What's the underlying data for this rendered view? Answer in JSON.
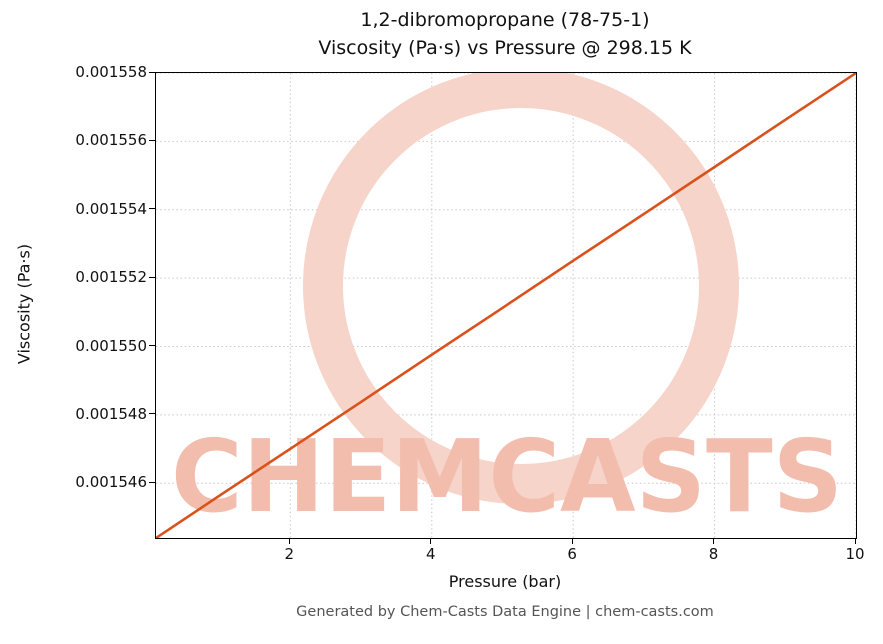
{
  "titles": {
    "line1": "1,2-dibromopropane (78-75-1)",
    "line2": "Viscosity (Pa·s) vs Pressure @ 298.15 K"
  },
  "footer": "Generated by Chem-Casts Data Engine | chem-casts.com",
  "watermark": {
    "text": "CHEMCASTS",
    "ring_color": "#f6d4ca",
    "text_color": "#f3bdae"
  },
  "chart_data": {
    "type": "line",
    "title": "1,2-dibromopropane (78-75-1) Viscosity (Pa·s) vs Pressure @ 298.15 K",
    "xlabel": "Pressure (bar)",
    "ylabel": "Viscosity (Pa·s)",
    "xlim": [
      0.1,
      10
    ],
    "ylim": [
      0.0015444,
      0.001558
    ],
    "x_ticks": [
      2,
      4,
      6,
      8,
      10
    ],
    "y_ticks": [
      0.001546,
      0.001548,
      0.00155,
      0.001552,
      0.001554,
      0.001556,
      0.001558
    ],
    "grid": true,
    "line_color": "#d9521c",
    "series": [
      {
        "name": "Viscosity vs Pressure",
        "x": [
          0.1,
          1,
          2,
          3,
          4,
          5,
          6,
          7,
          8,
          9,
          10
        ],
        "y": [
          0.0015444,
          0.00154564,
          0.00154701,
          0.00154838,
          0.00154976,
          0.00155113,
          0.00155251,
          0.00155388,
          0.00155525,
          0.00155663,
          0.001558
        ]
      }
    ]
  }
}
